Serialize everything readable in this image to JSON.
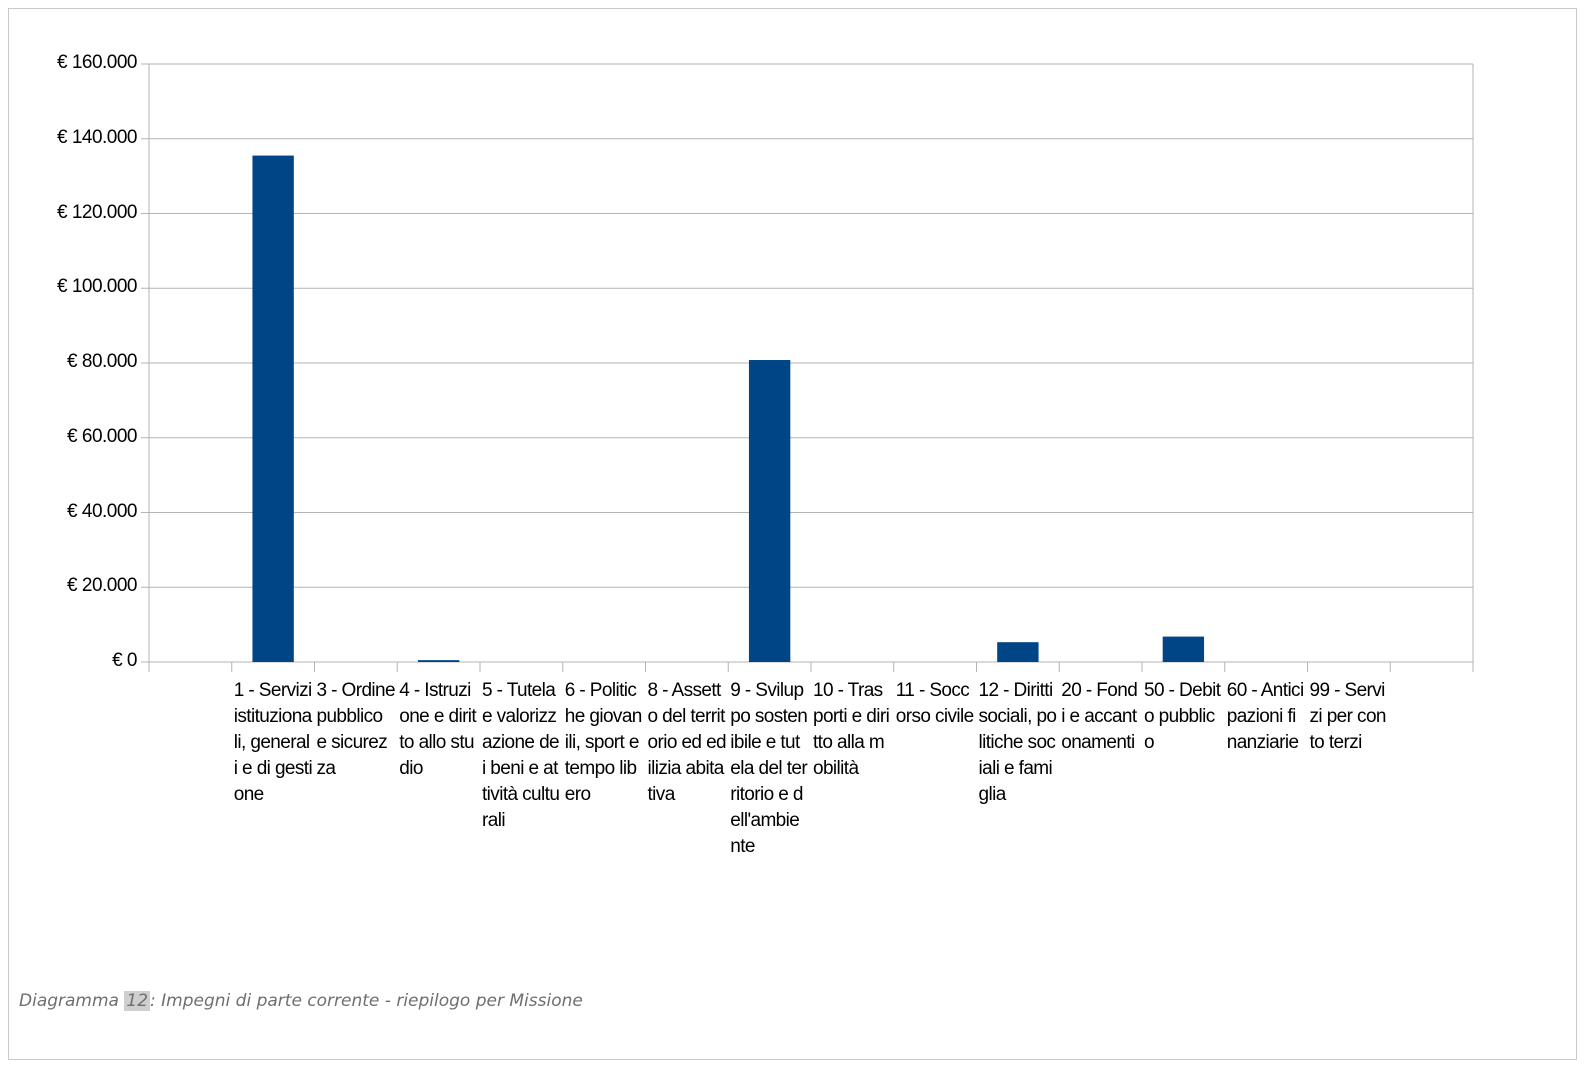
{
  "chart_data": {
    "type": "bar",
    "categories": [
      "1 - Servizi istituzionali, generali e di gestione",
      "3 - Ordine pubblico e sicurezza",
      "4 - Istruzione e diritto allo studio",
      "5 - Tutela e valorizzazione dei beni e attività culturali",
      "6 - Politiche giovanili, sport e tempo libero",
      "8 - Assetto del territorio ed edilizia abitativa",
      "9 - Sviluppo sostenibile e tutela del territorio e dell'ambiente",
      "10 - Trasporti e diritto alla mobilità",
      "11 - Soccorso civile",
      "12 - Diritti sociali, politiche sociali e famiglia",
      "20 - Fondi e accantonamenti",
      "50 - Debito pubblico",
      "60 - Anticipazioni finanziarie",
      "99 - Servizi per conto terzi"
    ],
    "values": [
      135500,
      0,
      500,
      0,
      0,
      0,
      80800,
      0,
      0,
      5300,
      0,
      6800,
      0,
      0
    ],
    "ylim": [
      0,
      160000
    ],
    "yticks": [
      0,
      20000,
      40000,
      60000,
      80000,
      100000,
      120000,
      140000,
      160000
    ],
    "ytick_labels": [
      "€ 0",
      "€ 20.000",
      "€ 40.000",
      "€ 60.000",
      "€ 80.000",
      "€ 100.000",
      "€ 120.000",
      "€ 140.000",
      "€ 160.000"
    ],
    "grid": true,
    "bar_color": "#004586",
    "title": "",
    "xlabel": "",
    "ylabel": ""
  },
  "caption": {
    "prefix": "Diagramma ",
    "number": "12",
    "text": ": Impegni di parte corrente - riepilogo per Missione"
  }
}
